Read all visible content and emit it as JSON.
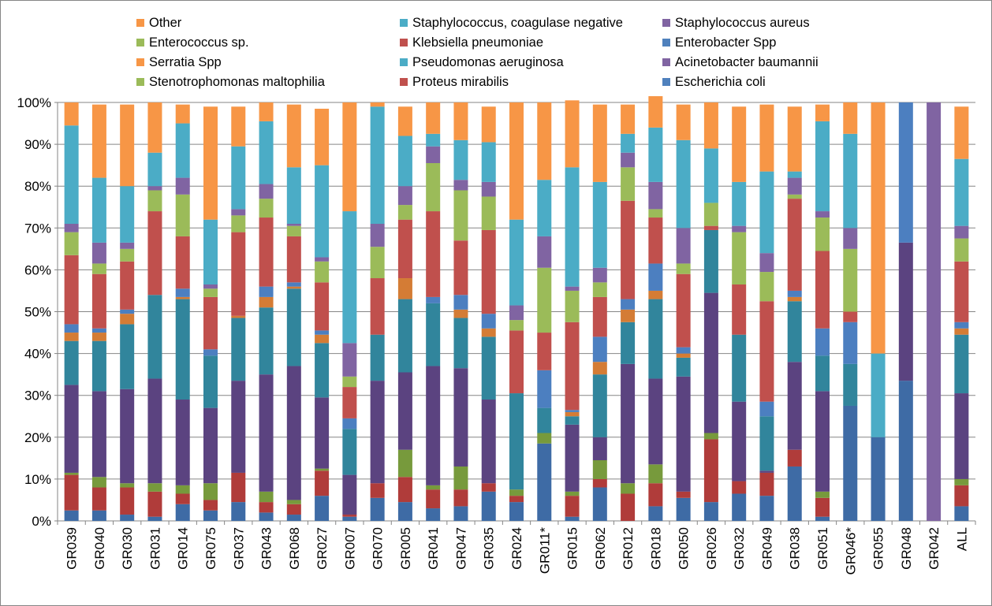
{
  "chart_data": {
    "type": "bar",
    "stacked": true,
    "percent": true,
    "categories": [
      "GR039",
      "GR040",
      "GR030",
      "GR031",
      "GR014",
      "GR075",
      "GR037",
      "GR043",
      "GR068",
      "GR027",
      "GR007",
      "GR070",
      "GR005",
      "GR041",
      "GR047",
      "GR035",
      "GR024",
      "GR011*",
      "GR015",
      "GR062",
      "GR012",
      "GR018",
      "GR050",
      "GR026",
      "GR032",
      "GR049",
      "GR038",
      "GR051",
      "GR046*",
      "GR055",
      "GR048",
      "GR042",
      "ALL"
    ],
    "y_ticks": [
      "0%",
      "10%",
      "20%",
      "30%",
      "40%",
      "50%",
      "60%",
      "70%",
      "80%",
      "90%",
      "100%"
    ],
    "ylim": [
      0,
      100
    ],
    "grid": true,
    "legend_position": "top",
    "series": [
      {
        "name": "Escherichia coli",
        "color": "#4F81BD",
        "bar_color": "#3E6BA5",
        "values": [
          2.5,
          2.5,
          1.5,
          1,
          4,
          2.5,
          4.5,
          2,
          1.5,
          6,
          1,
          5.5,
          4.5,
          3,
          3.5,
          7,
          4.5,
          18.5,
          1,
          8,
          0,
          3.5,
          5.5,
          4.5,
          6.5,
          6,
          13,
          1,
          27.5,
          20,
          33.5,
          0,
          3.5
        ]
      },
      {
        "name": "Proteus mirabilis",
        "color": "#C0504D",
        "bar_color": "#B03C3A",
        "values": [
          8.5,
          5.5,
          6.5,
          6,
          2.5,
          2.5,
          7,
          2.5,
          2.5,
          6,
          0.5,
          3.5,
          6,
          4.5,
          4,
          2,
          1.5,
          0,
          5,
          2,
          6.5,
          5.5,
          1.5,
          15,
          3,
          5.5,
          4,
          4.5,
          0,
          0,
          0,
          0,
          5
        ]
      },
      {
        "name": "Stenotrophomonas maltophilia",
        "color": "#9BBB59",
        "bar_color": "#779A3C",
        "values": [
          0.5,
          2.5,
          1,
          2,
          2,
          4,
          0,
          2.5,
          1,
          0.5,
          0,
          0,
          6.5,
          1,
          5.5,
          0,
          1.5,
          2.5,
          1,
          4.5,
          2.5,
          4.5,
          0,
          1.5,
          0,
          0,
          0,
          1.5,
          0,
          0,
          0,
          0,
          1.5
        ]
      },
      {
        "name": "Acinetobacter baumannii",
        "color": "#8064A2",
        "bar_color": "#5B4380",
        "values": [
          21,
          20.5,
          22.5,
          25,
          20.5,
          18,
          22,
          28,
          32,
          17,
          9.5,
          24.5,
          18.5,
          28.5,
          23.5,
          20,
          0,
          0,
          16,
          5.5,
          28.5,
          20.5,
          27.5,
          33.5,
          19,
          0.5,
          21,
          24,
          0,
          0,
          33,
          0,
          20.5
        ]
      },
      {
        "name": "Pseudomonas aeruginosa",
        "color": "#4BACC6",
        "bar_color": "#31859C",
        "values": [
          10.5,
          12,
          15.5,
          20,
          24,
          12.5,
          15,
          16,
          18.5,
          13,
          11,
          11,
          17.5,
          15,
          12,
          15,
          23,
          6,
          2,
          15,
          10,
          19,
          4.5,
          15,
          16,
          13,
          14.5,
          8.5,
          10,
          0,
          0,
          0,
          14
        ]
      },
      {
        "name": "Serratia Spp",
        "color": "#F79646",
        "bar_color": "#D47C35",
        "values": [
          2,
          2,
          2.5,
          0,
          0.5,
          0,
          0.5,
          2.5,
          0.5,
          2,
          0,
          0,
          5,
          0,
          2,
          2,
          0,
          0,
          1,
          3,
          3,
          2,
          1,
          0,
          0,
          0,
          1,
          0,
          0,
          0,
          0,
          0,
          1.5
        ]
      },
      {
        "name": "Enterobacter Spp",
        "color": "#4F81BD",
        "bar_color": "#4C7FC0",
        "values": [
          2,
          1,
          1,
          0,
          2,
          1.5,
          0,
          2.5,
          1,
          1,
          2.5,
          0,
          0,
          1.5,
          3.5,
          3.5,
          0,
          9,
          0.5,
          6,
          2.5,
          6.5,
          1.5,
          0,
          0,
          3.5,
          1.5,
          6.5,
          10,
          0,
          33.5,
          0,
          1.5
        ]
      },
      {
        "name": "Klebsiella pneumoniae",
        "color": "#C0504D",
        "bar_color": "#C0504D",
        "values": [
          16.5,
          13,
          11.5,
          20,
          12.5,
          12.5,
          20,
          16.5,
          11,
          11.5,
          7.5,
          13.5,
          14,
          20.5,
          13,
          20,
          15,
          9,
          21,
          9.5,
          23.5,
          11,
          17.5,
          1,
          12,
          24,
          22,
          18.5,
          2.5,
          0,
          0,
          0,
          14.5
        ]
      },
      {
        "name": "Enterococcus sp.",
        "color": "#9BBB59",
        "bar_color": "#9BBB59",
        "values": [
          5.5,
          2.5,
          3,
          5,
          10,
          2,
          4,
          4.5,
          2.5,
          5,
          2.5,
          7.5,
          3.5,
          11.5,
          12,
          8,
          2.5,
          15.5,
          7.5,
          3.5,
          8,
          2,
          2.5,
          5.5,
          12.5,
          7,
          1,
          8,
          15,
          0,
          0,
          0,
          5.5
        ]
      },
      {
        "name": "Staphylococcus aureus",
        "color": "#8064A2",
        "bar_color": "#8064A2",
        "values": [
          2,
          5,
          1.5,
          1,
          4,
          1,
          1.5,
          3.5,
          0.5,
          1,
          8,
          5.5,
          4.5,
          4,
          2.5,
          3.5,
          3.5,
          7.5,
          1,
          3.5,
          3.5,
          6.5,
          8.5,
          0,
          1.5,
          4.5,
          4,
          1.5,
          5,
          0,
          0,
          100,
          3
        ]
      },
      {
        "name": "Staphylococcus, coagulase negative",
        "color": "#4BACC6",
        "bar_color": "#4BACC6",
        "values": [
          23.5,
          15.5,
          13.5,
          8,
          13,
          15.5,
          15,
          15,
          13.5,
          22,
          31.5,
          28,
          12,
          3,
          9.5,
          9.5,
          20.5,
          13.5,
          28.5,
          20.5,
          4.5,
          13,
          21,
          13,
          10.5,
          19.5,
          1.5,
          21.5,
          22.5,
          20,
          0,
          0,
          16
        ]
      },
      {
        "name": "Other",
        "color": "#F79646",
        "bar_color": "#F79646",
        "values": [
          5.5,
          17.5,
          19.5,
          12,
          4.5,
          27,
          9.5,
          4.5,
          15,
          13.5,
          26,
          1,
          7,
          7.5,
          9,
          8.5,
          28,
          18.5,
          16,
          18.5,
          7,
          7.5,
          8.5,
          11,
          18,
          16,
          15.5,
          4,
          7.5,
          60,
          0,
          0,
          12.5
        ]
      }
    ]
  },
  "legend": {
    "order": [
      "Other",
      "Staphylococcus, coagulase negative",
      "Staphylococcus aureus",
      "Enterococcus sp.",
      "Klebsiella pneumoniae",
      "Enterobacter Spp",
      "Serratia Spp",
      "Pseudomonas aeruginosa",
      "Acinetobacter baumannii",
      "Stenotrophomonas maltophilia",
      "Proteus mirabilis",
      "Escherichia coli"
    ]
  }
}
